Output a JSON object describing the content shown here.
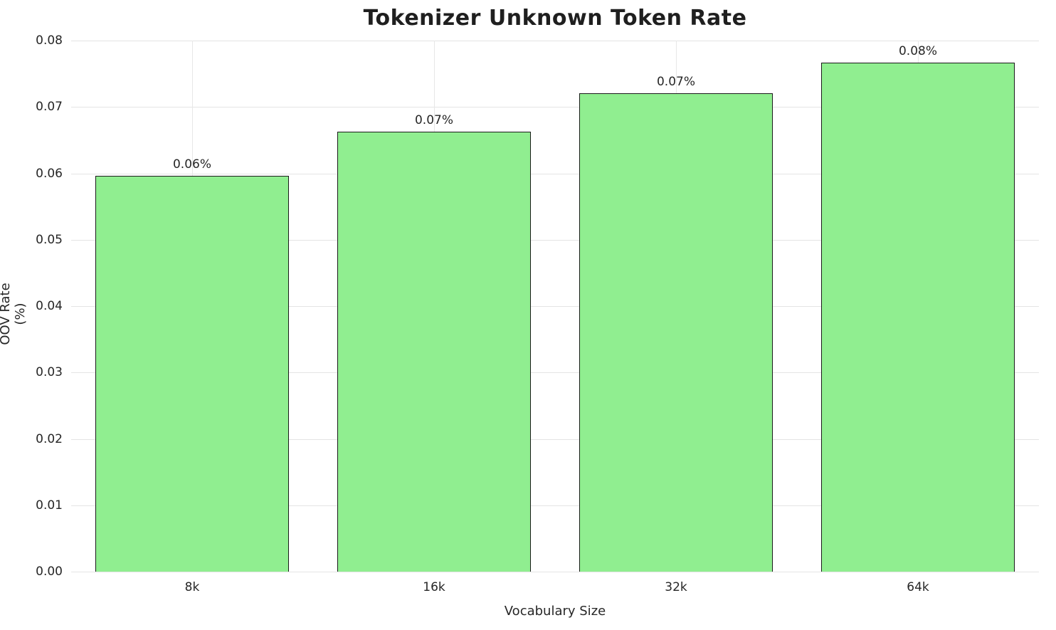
{
  "chart_data": {
    "type": "bar",
    "title": "Tokenizer Unknown Token Rate",
    "xlabel": "Vocabulary Size",
    "ylabel": "OOV Rate (%)",
    "categories": [
      "8k",
      "16k",
      "32k",
      "64k"
    ],
    "values": [
      0.0596,
      0.0663,
      0.0721,
      0.0767
    ],
    "bar_labels": [
      "0.06%",
      "0.07%",
      "0.07%",
      "0.08%"
    ],
    "ylim": [
      0,
      0.08
    ],
    "yticks": [
      "0.00",
      "0.01",
      "0.02",
      "0.03",
      "0.04",
      "0.05",
      "0.06",
      "0.07",
      "0.08"
    ],
    "grid": true,
    "legend": "none",
    "bar_color": "#90ee90",
    "bar_edge_color": "#1a1a1a",
    "grid_color": "#e4e4e4",
    "background_color": "#ffffff"
  }
}
